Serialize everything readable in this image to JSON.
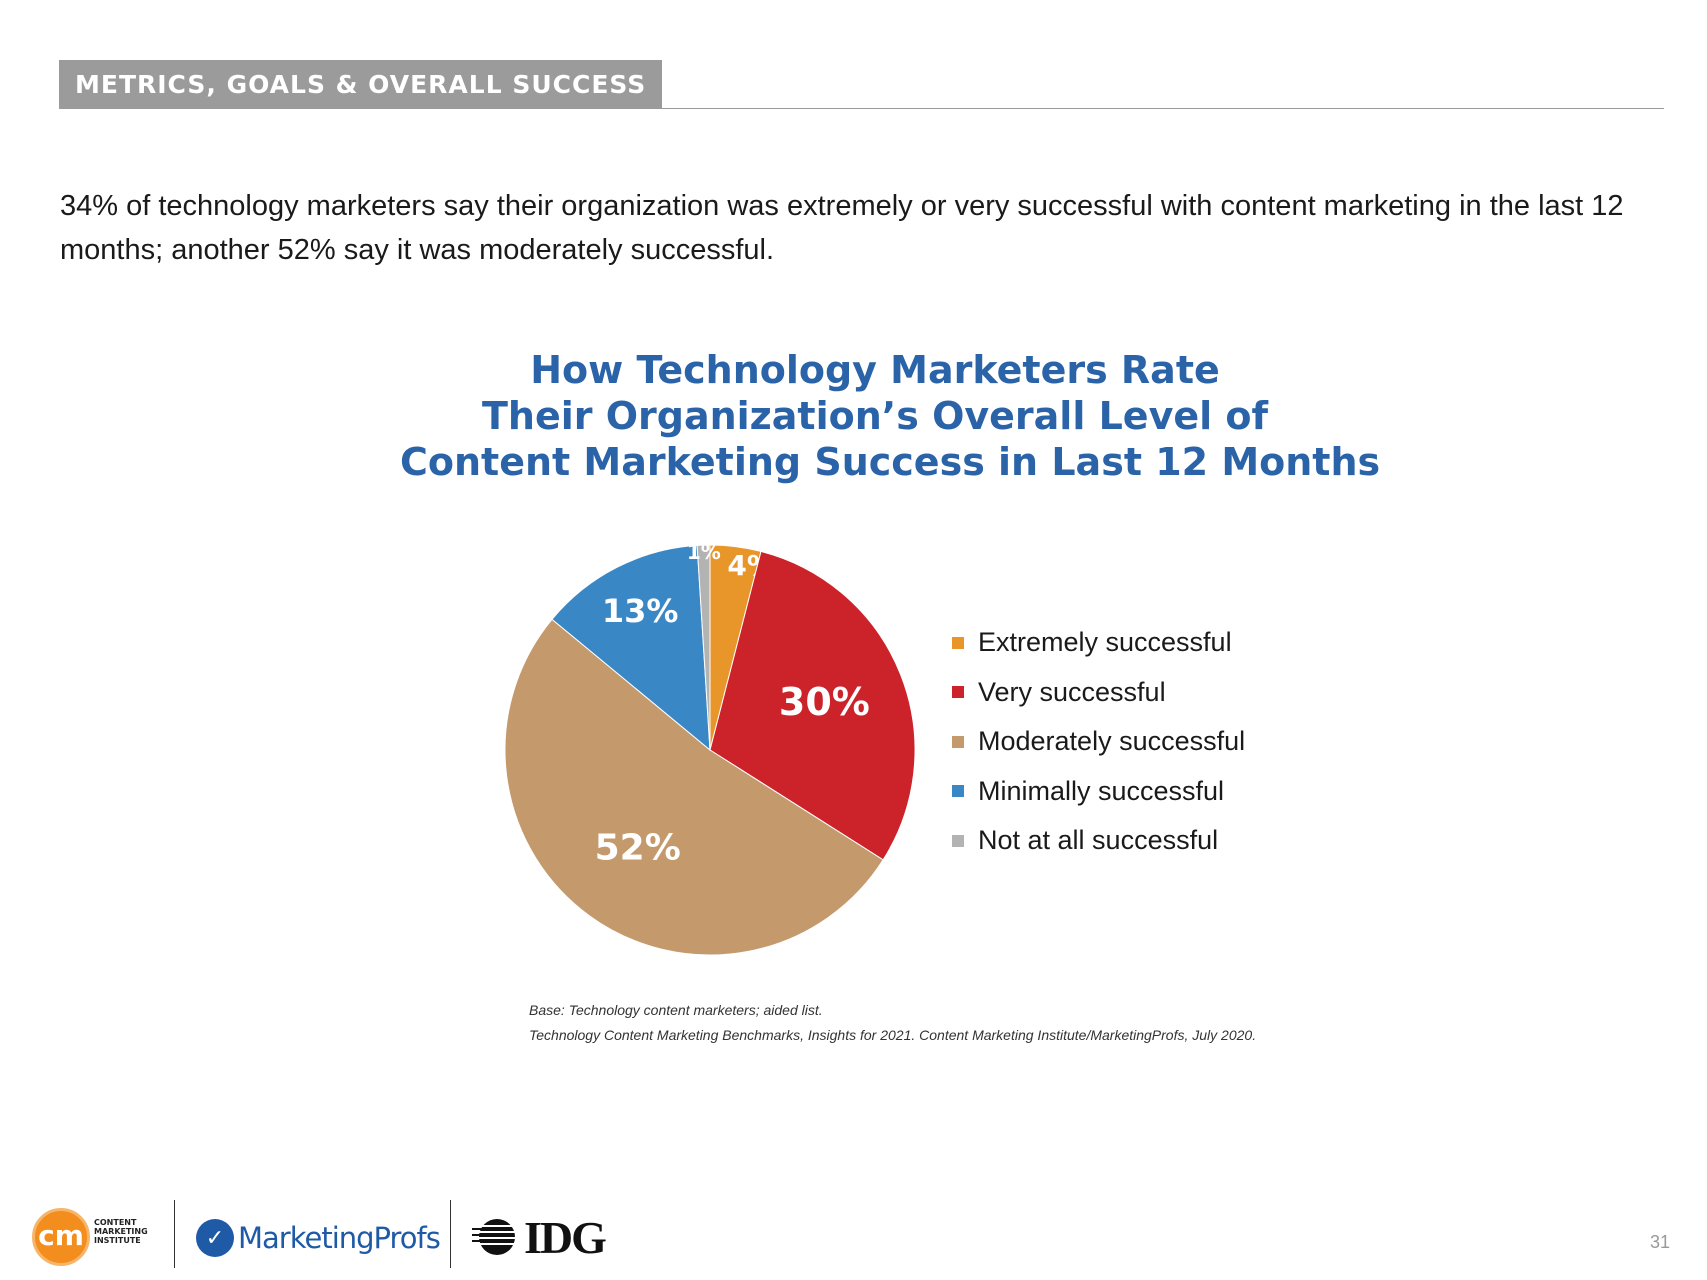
{
  "header": {
    "section_tag": "METRICS, GOALS & OVERALL SUCCESS"
  },
  "intro_text": "34% of technology marketers say their organization was extremely or very successful with content marketing in the last 12 months; another 52% say it was moderately successful.",
  "chart_data": {
    "type": "pie",
    "title_lines": [
      "How Technology Marketers Rate",
      "Their Organization’s Overall Level of",
      "Content Marketing Success in Last 12 Months"
    ],
    "categories": [
      "Extremely successful",
      "Very successful",
      "Moderately successful",
      "Minimally successful",
      "Not at all successful"
    ],
    "values": [
      4,
      30,
      52,
      13,
      1
    ],
    "labels": [
      "4%",
      "30%",
      "52%",
      "13%",
      "1%"
    ],
    "colors": [
      "#e8962a",
      "#cc2229",
      "#c4996b",
      "#3a87c6",
      "#b3b3b3"
    ],
    "start": "12 o'clock, clockwise",
    "legend_position": "right"
  },
  "source": {
    "base_note": "Base: Technology content marketers; aided list.",
    "citation": "Technology Content Marketing Benchmarks, Insights for 2021. Content Marketing Institute/MarketingProfs, July 2020."
  },
  "footer": {
    "logos": {
      "cmi_mark": "cm",
      "cmi_text": "CONTENT\nMARKETING\nINSTITUTE",
      "marketingprofs": "MarketingProfs",
      "idg": "IDG"
    },
    "page_number": "31"
  }
}
